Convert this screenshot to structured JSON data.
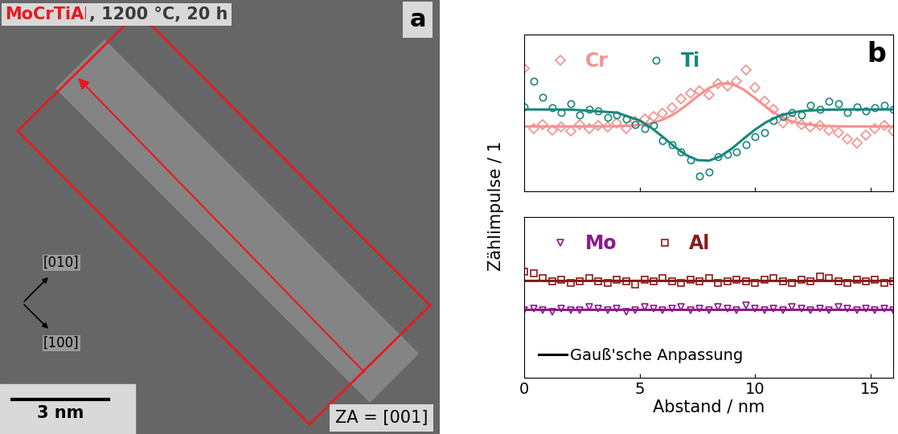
{
  "image_panel": {
    "title_parts": [
      {
        "text": "MoCrTiAl",
        "color": "#e8191f"
      },
      {
        "text": ", 1200 °C, 20 h",
        "color": "#3a3a3a"
      }
    ],
    "panel_label": "a",
    "directions": [
      "[010]",
      "[100]"
    ],
    "scale_bar": "3 nm",
    "zone_axis": "ZA = [001]"
  },
  "chart_data": [
    {
      "type": "scatter",
      "ylabel": "Zählimpulse / 1",
      "annotations": [
        "b"
      ],
      "xlim": [
        0,
        16
      ],
      "xticks": [
        0,
        5,
        10,
        15
      ],
      "ylim": [
        0,
        11.5
      ],
      "yticks": [],
      "tick_labels": false,
      "legend": "upper left",
      "x": [
        0,
        0.4,
        0.8,
        1.2,
        1.6,
        2.0,
        2.4,
        2.8,
        3.2,
        3.6,
        4.0,
        4.4,
        4.8,
        5.2,
        5.6,
        6.0,
        6.4,
        6.8,
        7.2,
        7.6,
        8.0,
        8.4,
        8.8,
        9.2,
        9.6,
        10.0,
        10.4,
        10.8,
        11.2,
        11.6,
        12.0,
        12.4,
        12.8,
        13.2,
        13.6,
        14.0,
        14.4,
        14.8,
        15.2,
        15.6,
        16.0
      ],
      "series": [
        {
          "name": "Cr",
          "color": "#f4918f",
          "marker": "diamond",
          "line_style": "solid",
          "values": [
            9.0,
            4.6,
            4.9,
            4.5,
            4.7,
            4.4,
            4.9,
            4.6,
            4.8,
            4.7,
            5.0,
            4.6,
            5.1,
            5.3,
            5.5,
            5.7,
            6.1,
            6.8,
            7.2,
            7.4,
            7.1,
            7.9,
            7.7,
            8.1,
            8.9,
            7.6,
            6.6,
            6.0,
            5.0,
            5.3,
            4.9,
            4.7,
            4.8,
            4.5,
            4.3,
            3.8,
            3.5,
            4.1,
            4.6,
            4.8,
            4.4
          ],
          "fit": {
            "x": [
              0,
              2,
              4,
              5,
              5.5,
              6,
              6.5,
              7,
              7.5,
              8,
              8.5,
              9,
              9.5,
              10,
              10.5,
              11,
              11.5,
              12,
              13,
              14,
              16
            ],
            "values": [
              4.75,
              4.75,
              4.76,
              4.85,
              4.98,
              5.25,
              5.68,
              6.28,
              6.97,
              7.57,
              7.92,
              7.88,
              7.47,
              6.83,
              6.15,
              5.58,
              5.18,
              4.95,
              4.78,
              4.75,
              4.75
            ]
          }
        },
        {
          "name": "Ti",
          "color": "#17877d",
          "marker": "circle",
          "line_style": "solid",
          "values": [
            6.2,
            8.1,
            6.9,
            6.1,
            5.8,
            6.4,
            5.6,
            6.0,
            5.9,
            5.4,
            5.6,
            5.3,
            4.9,
            4.6,
            4.8,
            3.7,
            3.4,
            2.9,
            2.3,
            1.1,
            1.4,
            2.5,
            2.7,
            2.9,
            3.4,
            4.0,
            4.3,
            5.2,
            5.5,
            5.8,
            5.6,
            6.3,
            6.0,
            6.6,
            6.4,
            5.8,
            6.2,
            5.9,
            6.1,
            6.3,
            6.0
          ],
          "fit": {
            "x": [
              0,
              2,
              4,
              5,
              5.5,
              6,
              6.5,
              7,
              7.5,
              8,
              8.5,
              9,
              9.5,
              10,
              10.5,
              11,
              11.5,
              12,
              13,
              14,
              16
            ],
            "values": [
              6.0,
              5.99,
              5.77,
              5.18,
              4.65,
              3.98,
              3.27,
              2.65,
              2.27,
              2.23,
              2.55,
              3.13,
              3.84,
              4.52,
              5.08,
              5.49,
              5.74,
              5.88,
              5.98,
              6.0,
              6.0
            ]
          }
        }
      ]
    },
    {
      "type": "scatter",
      "xlabel": "Abstand / nm",
      "fit_label": "Gauß'sche Anpassung",
      "xlim": [
        0,
        16
      ],
      "xticks": [
        0,
        5,
        10,
        15
      ],
      "ylim": [
        0,
        10
      ],
      "yticks": [],
      "tick_labels": "x",
      "legend": "upper left",
      "x": [
        0,
        0.4,
        0.8,
        1.2,
        1.6,
        2.0,
        2.4,
        2.8,
        3.2,
        3.6,
        4.0,
        4.4,
        4.8,
        5.2,
        5.6,
        6.0,
        6.4,
        6.8,
        7.2,
        7.6,
        8.0,
        8.4,
        8.8,
        9.2,
        9.6,
        10.0,
        10.4,
        10.8,
        11.2,
        11.6,
        12.0,
        12.4,
        12.8,
        13.2,
        13.6,
        14.0,
        14.4,
        14.8,
        15.2,
        15.6,
        16.0
      ],
      "series": [
        {
          "name": "Mo",
          "color": "#8b1a8b",
          "marker": "triangle_down",
          "line_style": "solid",
          "values": [
            4.2,
            4.3,
            4.2,
            4.1,
            4.3,
            4.2,
            4.2,
            4.4,
            4.3,
            4.2,
            4.3,
            4.1,
            4.2,
            4.4,
            4.3,
            4.2,
            4.3,
            4.4,
            4.2,
            4.3,
            4.2,
            4.4,
            4.3,
            4.2,
            4.5,
            4.3,
            4.2,
            4.3,
            4.2,
            4.4,
            4.3,
            4.2,
            4.3,
            4.2,
            4.4,
            4.3,
            4.2,
            4.3,
            4.2,
            4.3,
            4.2
          ],
          "fit": {
            "x": [
              0,
              16
            ],
            "values": [
              4.25,
              4.25
            ]
          }
        },
        {
          "name": "Al",
          "color": "#8b1a1a",
          "marker": "square",
          "line_style": "solid",
          "values": [
            6.6,
            6.5,
            6.2,
            6.0,
            6.1,
            5.9,
            6.0,
            6.2,
            6.0,
            5.9,
            6.1,
            6.0,
            5.8,
            6.1,
            6.0,
            6.2,
            6.0,
            5.9,
            6.1,
            6.0,
            6.2,
            5.9,
            6.0,
            6.1,
            6.0,
            5.9,
            6.1,
            6.2,
            6.0,
            5.9,
            6.1,
            6.0,
            6.3,
            6.2,
            6.0,
            5.9,
            6.1,
            6.0,
            6.1,
            5.9,
            6.0
          ],
          "fit": {
            "x": [
              0,
              16
            ],
            "values": [
              6.05,
              6.05
            ]
          }
        }
      ]
    }
  ]
}
